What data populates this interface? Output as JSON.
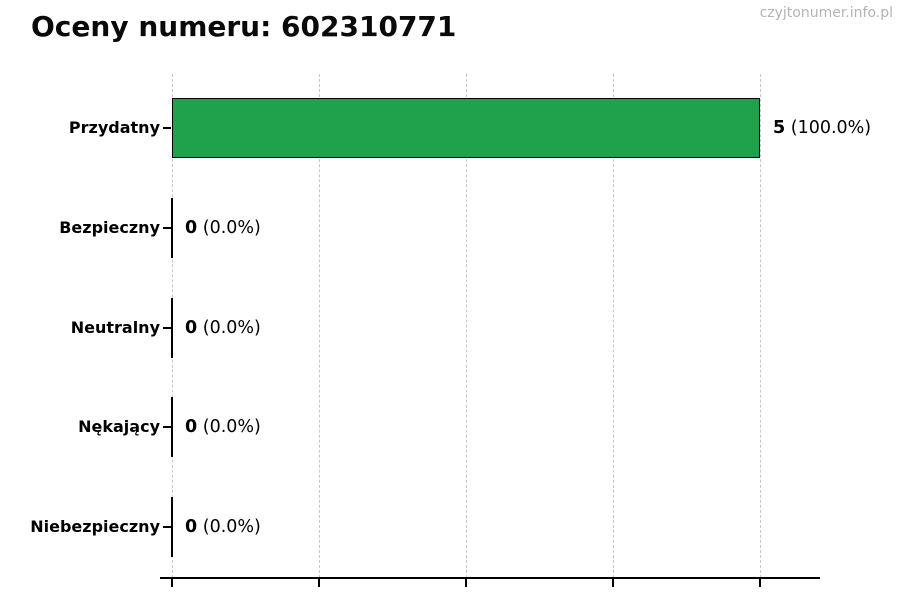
{
  "header": {
    "title": "Oceny numeru: 602310771",
    "watermark": "czyjtonumer.info.pl"
  },
  "colors": {
    "bar_fill": "#1ea24c",
    "bar_edge": "#000000",
    "grid": "#c8c8c8",
    "axis": "#000000",
    "watermark": "#b4b4b4",
    "text": "#000000"
  },
  "chart_data": {
    "type": "bar",
    "orientation": "horizontal",
    "title": "Oceny numeru: 602310771",
    "categories": [
      "Przydatny",
      "Bezpieczny",
      "Neutralny",
      "Nękający",
      "Niebezpieczny"
    ],
    "values": [
      5,
      0,
      0,
      0,
      0
    ],
    "counts_display": [
      "5",
      "0",
      "0",
      "0",
      "0"
    ],
    "pct_display": [
      "(100.0%)",
      "(0.0%)",
      "(0.0%)",
      "(0.0%)",
      "(0.0%)"
    ],
    "xlabel": "",
    "ylabel": "",
    "xlim": [
      0,
      5
    ],
    "xticks": [
      0,
      1.25,
      2.5,
      3.75,
      5
    ],
    "xtick_labels_visible": false,
    "grid": true,
    "grid_style": "dashed-vertical",
    "legend": "none",
    "bar_color": "#1ea24c"
  }
}
